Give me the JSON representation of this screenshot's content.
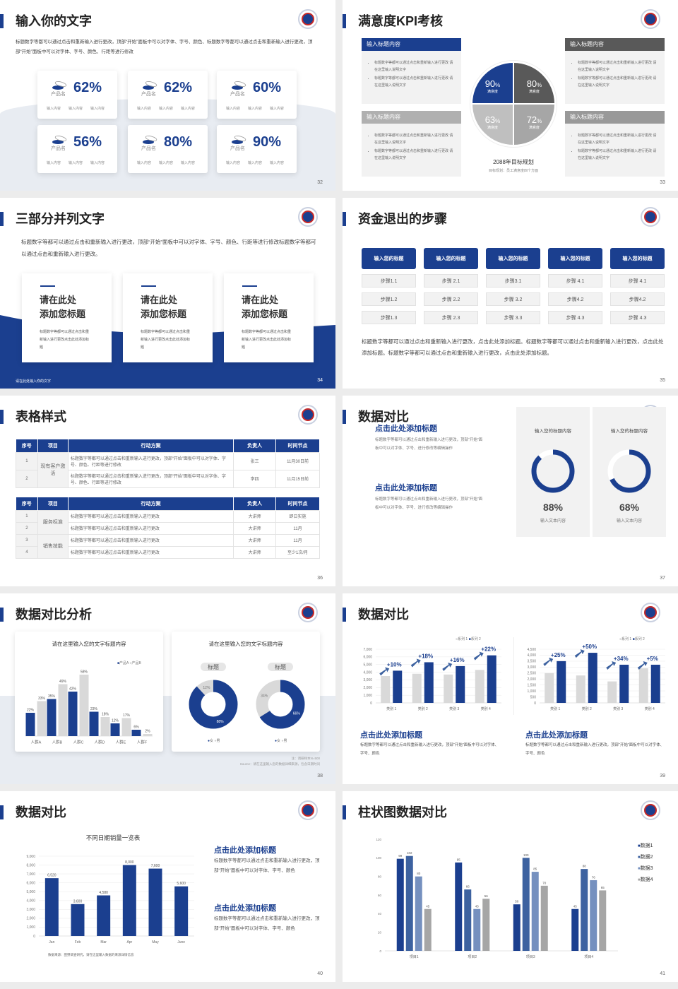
{
  "colors": {
    "primary": "#1b3f8f",
    "gray_bar": "#d9d9d9",
    "dark_gray": "#595959"
  },
  "s32": {
    "title": "输入你的文字",
    "para": "标题数字等都可以通过点击和重新输入进行更改，顶部“开始”面板中可以对字体、字号、颜色、标题数字等都可以通过点击和重新输入进行更改，顶部“开始”面板中可以对字体、字号、颜色、行距等进行修改",
    "page": "32",
    "cards": [
      {
        "pct": "62%",
        "name": "产品名",
        "subs": [
          "输入内容",
          "输入内容",
          "输入内容"
        ]
      },
      {
        "pct": "62%",
        "name": "产品名",
        "subs": [
          "输入内容",
          "输入内容",
          "输入内容"
        ]
      },
      {
        "pct": "60%",
        "name": "产品名",
        "subs": [
          "输入内容",
          "输入内容",
          "输入内容"
        ]
      },
      {
        "pct": "56%",
        "name": "产品名",
        "subs": [
          "输入内容",
          "输入内容",
          "输入内容"
        ]
      },
      {
        "pct": "80%",
        "name": "产品名",
        "subs": [
          "输入内容",
          "输入内容",
          "输入内容"
        ]
      },
      {
        "pct": "90%",
        "name": "产品名",
        "subs": [
          "输入内容",
          "输入内容",
          "输入内容"
        ]
      }
    ]
  },
  "s33": {
    "title": "满意度KPI考核",
    "page": "33",
    "caption": "2088年目标规划",
    "subcaption": "目标规划：员工满意度四个方面",
    "boxes": [
      {
        "header": "输入标题内容",
        "bullets": [
          "标题数字等都可以通过点击和重新输入进行更改 请在这里输入说明文字",
          "标题数字等都可以通过点击和重新输入进行更改 请在这里输入说明文字"
        ]
      },
      {
        "header": "输入标题内容",
        "bullets": [
          "标题数字等都可以通过点击和重新输入进行更改 请在这里输入说明文字",
          "标题数字等都可以通过点击和重新输入进行更改 请在这里输入说明文字"
        ]
      },
      {
        "header": "输入标题内容",
        "bullets": [
          "标题数字等都可以通过点击和重新输入进行更改 请在这里输入说明文字",
          "标题数字等都可以通过点击和重新输入进行更改 请在这里输入说明文字"
        ]
      },
      {
        "header": "输入标题内容",
        "bullets": [
          "标题数字等都可以通过点击和重新输入进行更改 请在这里输入说明文字",
          "标题数字等都可以通过点击和重新输入进行更改 请在这里输入说明文字"
        ]
      }
    ],
    "quadrants": [
      {
        "value": "90",
        "unit": "%",
        "label": "满意度",
        "color": "#1b3f8f"
      },
      {
        "value": "80",
        "unit": "%",
        "label": "满意度",
        "color": "#595959"
      },
      {
        "value": "63",
        "unit": "%",
        "label": "满意度",
        "color": "#bfbfbf"
      },
      {
        "value": "72",
        "unit": "%",
        "label": "满意度",
        "color": "#a6a6a6"
      }
    ]
  },
  "s34": {
    "title": "三部分并列文字",
    "page": "34",
    "para": "标题数字等都可以通过点击和重新输入进行更改，顶部“开始”面板中可以对字体、字号、颜色、行距等进行修改标题数字等都可以通过点击和重新输入进行更改。",
    "footer": "请在此处输入你的文字",
    "cards": [
      {
        "line1": "请在此处",
        "line2": "添加您标题",
        "body": "标题数字等都可以通过点击和重新输入进行更改点击此处添加标题"
      },
      {
        "line1": "请在此处",
        "line2": "添加您标题",
        "body": "标题数字等都可以通过点击和重新输入进行更改点击此处添加标题"
      },
      {
        "line1": "请在此处",
        "line2": "添加您标题",
        "body": "标题数字等都可以通过点击和重新输入进行更改点击此处添加标题"
      }
    ]
  },
  "s35": {
    "title": "资金退出的步骤",
    "page": "35",
    "para": "标题数字等都可以通过点击和重新输入进行更改，点击此处添加标题。标题数字等都可以通过点击和重新输入进行更改，点击此处添加标题。标题数字等都可以通过点击和重新输入进行更改，点击此处添加标题。",
    "columns": [
      {
        "header": "输入您的标题",
        "steps": [
          "步骤1.1",
          "步骤1.2",
          "步骤1.3"
        ]
      },
      {
        "header": "输入您的标题",
        "steps": [
          "步骤 2.1",
          "步骤 2.2",
          "步骤 2.3"
        ]
      },
      {
        "header": "输入您的标题",
        "steps": [
          "步骤3.1",
          "步骤 3.2",
          "步骤 3.3"
        ]
      },
      {
        "header": "输入您的标题",
        "steps": [
          "步骤 4.1",
          "步骤4.2",
          "步骤 4.3"
        ]
      },
      {
        "header": "输入您的标题",
        "steps": [
          "步骤 4.1",
          "步骤4.2",
          "步骤 4.3"
        ]
      }
    ]
  },
  "s36": {
    "title": "表格样式",
    "page": "36",
    "tables": [
      {
        "headers": [
          "序号",
          "项目",
          "行动方案",
          "负责人",
          "时间节点"
        ],
        "groups": [
          {
            "name": "现有客户激活",
            "rows": [
              {
                "no": "1",
                "plan": "标题数字等都可以通过点击和重新输入进行更改，顶部“开始”面板中可以对字体、字号、颜色、行距等进行修改",
                "owner": "张三",
                "time": "11月30日前"
              },
              {
                "no": "2",
                "plan": "标题数字等都可以通过点击和重新输入进行更改，顶部“开始”面板中可以对字体、字号、颜色、行距等进行修改",
                "owner": "李四",
                "time": "11月15日前"
              }
            ]
          }
        ]
      },
      {
        "headers": [
          "序号",
          "项目",
          "行动方案",
          "负责人",
          "时间节点"
        ],
        "groups": [
          {
            "name": "服务标准",
            "rows": [
              {
                "no": "1",
                "plan": "标题数字等都可以通过点击和重新输入进行更改",
                "owner": "大讲师",
                "time": "即日实施"
              },
              {
                "no": "2",
                "plan": "标题数字等都可以通过点击和重新输入进行更改",
                "owner": "大讲师",
                "time": "11月"
              }
            ]
          },
          {
            "name": "销售技能",
            "rows": [
              {
                "no": "3",
                "plan": "标题数字等都可以通过点击和重新输入进行更改",
                "owner": "大讲师",
                "time": "11月"
              },
              {
                "no": "4",
                "plan": "标题数字等都可以通过点击和重新输入进行更改",
                "owner": "大讲师",
                "time": "至少1次/月"
              }
            ]
          }
        ]
      }
    ]
  },
  "s37": {
    "title": "数据对比",
    "page": "37",
    "blocks": [
      {
        "heading": "点击此处添加标题",
        "text": "标题数字等都可以通过点击和重新输入进行更改，顶部“开始”面板中可以对字体、字号、进行修改等编辑操作"
      },
      {
        "heading": "点击此处添加标题",
        "text": "标题数字等都可以通过点击和重新输入进行更改，顶部“开始”面板中可以对字体、字号、进行修改等编辑操作"
      }
    ],
    "gauges": [
      {
        "title": "输入您的标题内容",
        "value": 88,
        "label": "88%",
        "caption": "输入文本内容"
      },
      {
        "title": "输入您的标题内容",
        "value": 68,
        "label": "68%",
        "caption": "输入文本内容"
      }
    ]
  },
  "s38": {
    "title": "数据对比分析",
    "page": "38",
    "note": "注：调研样本N=500",
    "source": "Source：请在这里输入您的数据详细来源，包含日期时间",
    "donut_card": {
      "title": "请在这里输入您的文字标题内容",
      "legend": [
        "女",
        "男"
      ],
      "donuts": [
        {
          "tag": "标题",
          "values": [
            88,
            12
          ],
          "labels": [
            "88%",
            "12%"
          ]
        },
        {
          "tag": "标题",
          "values": [
            66,
            34
          ],
          "labels": [
            "66%",
            "34%"
          ]
        }
      ]
    }
  },
  "s39": {
    "title": "数据对比",
    "page": "39",
    "blocks": [
      {
        "heading": "点击此处添加标题",
        "text": "标题数字等都可以通过点击和重新输入进行更改，顶部“开始”面板中可以对字体、字号、颜色"
      },
      {
        "heading": "点击此处添加标题",
        "text": "标题数字等都可以通过点击和重新输入进行更改，顶部“开始”面板中可以对字体、字号、颜色"
      }
    ]
  },
  "s40": {
    "title": "数据对比",
    "page": "40",
    "source": "数据来源：田野调查研究，请在这里输入数据的来源详情信息",
    "blocks": [
      {
        "heading": "点击此处添加标题",
        "text": "标题数字等都可以通过点击和重新输入进行更改，顶部“开始”面板中可以对字体、字号、颜色"
      },
      {
        "heading": "点击此处添加标题",
        "text": "标题数字等都可以通过点击和重新输入进行更改，顶部“开始”面板中可以对字体、字号、颜色"
      }
    ]
  },
  "s41": {
    "title": "柱状图数据对比",
    "page": "41"
  },
  "chart_data": [
    {
      "type": "bar",
      "title": "请在这里输入您的文字标题内容",
      "categories": [
        "人群A",
        "人群B",
        "人群C",
        "人群D",
        "人群E",
        "人群F"
      ],
      "series": [
        {
          "name": "产品A",
          "values": [
            22,
            35,
            42,
            23,
            12,
            6
          ],
          "color": "#1b3f8f"
        },
        {
          "name": "产品B",
          "values": [
            33,
            49,
            58,
            18,
            17,
            2
          ],
          "color": "#d9d9d9"
        }
      ],
      "ylim": [
        0,
        60
      ],
      "value_suffix": "%",
      "legend": "top-right",
      "grid": false
    },
    {
      "type": "bar",
      "categories": [
        "类别 1",
        "类别 2",
        "类别 3",
        "类别 4"
      ],
      "series": [
        {
          "name": "系列 1",
          "values": [
            3500,
            3800,
            3700,
            4300
          ],
          "color": "#d9d9d9"
        },
        {
          "name": "系列 2",
          "values": [
            4200,
            5300,
            4800,
            6200
          ],
          "color": "#1b3f8f"
        }
      ],
      "annotations": [
        "+10%",
        "+18%",
        "+16%",
        "+22%"
      ],
      "ylim": [
        0,
        7000
      ],
      "yticks": [
        0,
        1000,
        2000,
        3000,
        4000,
        5000,
        6000,
        7000
      ],
      "legend": "top-right",
      "grid": true
    },
    {
      "type": "bar",
      "categories": [
        "类别 1",
        "类别 2",
        "类别 3",
        "类别 4"
      ],
      "series": [
        {
          "name": "系列 1",
          "values": [
            2500,
            2300,
            1800,
            2900
          ],
          "color": "#d9d9d9"
        },
        {
          "name": "系列 2",
          "values": [
            3500,
            4200,
            3200,
            3200
          ],
          "color": "#1b3f8f"
        }
      ],
      "annotations": [
        "+25%",
        "+50%",
        "+34%",
        "+5%"
      ],
      "ylim": [
        0,
        4500
      ],
      "yticks": [
        0,
        500,
        1000,
        1500,
        2000,
        2500,
        3000,
        3500,
        4000,
        4500
      ],
      "legend": "top-right",
      "grid": true
    },
    {
      "type": "bar",
      "title": "不同日期销量一览表",
      "categories": [
        "Jan",
        "Feb",
        "Mar",
        "Apr",
        "May",
        "June"
      ],
      "series": [
        {
          "values": [
            6520,
            3600,
            4580,
            8000,
            7600,
            5600
          ],
          "color": "#1b3f8f"
        }
      ],
      "ylim": [
        0,
        9000
      ],
      "yticks": [
        0,
        1000,
        2000,
        3000,
        4000,
        5000,
        6000,
        7000,
        8000,
        9000
      ],
      "grid": true
    },
    {
      "type": "bar",
      "categories": [
        "项目1",
        "项目2",
        "项目3",
        "项目4"
      ],
      "series": [
        {
          "name": "数据1",
          "values": [
            99,
            95,
            50,
            45
          ],
          "color": "#1b3f8f"
        },
        {
          "name": "数据2",
          "values": [
            102,
            66,
            100,
            88
          ],
          "color": "#3d62a0"
        },
        {
          "name": "数据3",
          "values": [
            80,
            45,
            85,
            76
          ],
          "color": "#7590bf"
        },
        {
          "name": "数据4",
          "values": [
            45,
            56,
            70,
            65
          ],
          "color": "#a6a6a6"
        }
      ],
      "ylim": [
        0,
        120
      ],
      "yticks": [
        0,
        20,
        40,
        60,
        80,
        100,
        120
      ],
      "legend": "right",
      "grid": false
    }
  ]
}
